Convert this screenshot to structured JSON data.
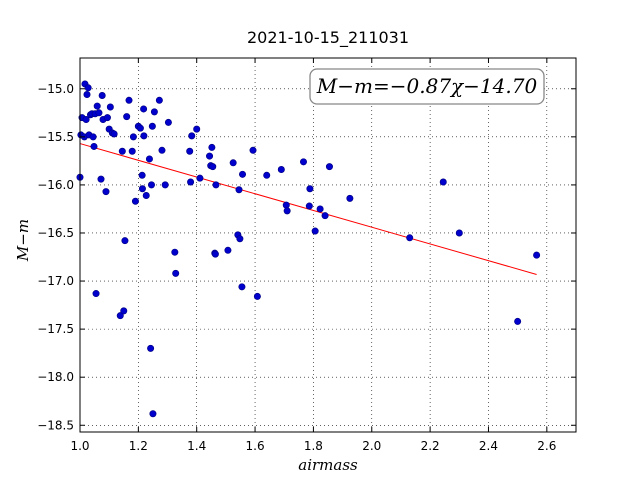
{
  "chart_data": {
    "type": "scatter",
    "title": "2021-10-15_211031",
    "xlabel": "airmass",
    "ylabel": "M−m",
    "xlim": [
      1.0,
      2.7
    ],
    "ylim": [
      -18.57,
      -14.68
    ],
    "xticks": [
      "1.0",
      "1.2",
      "1.4",
      "1.6",
      "1.8",
      "2.0",
      "2.2",
      "2.4",
      "2.6"
    ],
    "yticks": [
      "−15.0",
      "−15.5",
      "−16.0",
      "−16.5",
      "−17.0",
      "−17.5",
      "−18.0",
      "−18.5"
    ],
    "grid": true,
    "annotation": "M−m=−0.87χ−14.70",
    "annotation_position": "top-right",
    "marker_color": "#0000cc",
    "fit_color": "#ff0000",
    "fit": {
      "slope": -0.87,
      "intercept": -14.7,
      "x_range": [
        1.0,
        2.565
      ]
    },
    "points": [
      {
        "x": 1.0,
        "y": -15.92
      },
      {
        "x": 1.003,
        "y": -15.48
      },
      {
        "x": 1.007,
        "y": -15.3
      },
      {
        "x": 1.015,
        "y": -15.5
      },
      {
        "x": 1.017,
        "y": -14.95
      },
      {
        "x": 1.021,
        "y": -15.32
      },
      {
        "x": 1.024,
        "y": -15.06
      },
      {
        "x": 1.028,
        "y": -14.99
      },
      {
        "x": 1.031,
        "y": -15.48
      },
      {
        "x": 1.036,
        "y": -15.27
      },
      {
        "x": 1.041,
        "y": -15.26
      },
      {
        "x": 1.045,
        "y": -15.5
      },
      {
        "x": 1.048,
        "y": -15.6
      },
      {
        "x": 1.052,
        "y": -15.26
      },
      {
        "x": 1.055,
        "y": -17.13
      },
      {
        "x": 1.059,
        "y": -15.18
      },
      {
        "x": 1.065,
        "y": -15.25
      },
      {
        "x": 1.072,
        "y": -15.94
      },
      {
        "x": 1.076,
        "y": -15.07
      },
      {
        "x": 1.079,
        "y": -15.32
      },
      {
        "x": 1.089,
        "y": -16.07
      },
      {
        "x": 1.094,
        "y": -15.3
      },
      {
        "x": 1.1,
        "y": -15.42
      },
      {
        "x": 1.104,
        "y": -15.19
      },
      {
        "x": 1.111,
        "y": -15.46
      },
      {
        "x": 1.117,
        "y": -15.47
      },
      {
        "x": 1.138,
        "y": -17.36
      },
      {
        "x": 1.145,
        "y": -15.65
      },
      {
        "x": 1.15,
        "y": -17.31
      },
      {
        "x": 1.154,
        "y": -16.58
      },
      {
        "x": 1.16,
        "y": -15.29
      },
      {
        "x": 1.168,
        "y": -15.12
      },
      {
        "x": 1.179,
        "y": -15.65
      },
      {
        "x": 1.183,
        "y": -15.5
      },
      {
        "x": 1.19,
        "y": -16.17
      },
      {
        "x": 1.2,
        "y": -15.39
      },
      {
        "x": 1.207,
        "y": -15.41
      },
      {
        "x": 1.213,
        "y": -15.9
      },
      {
        "x": 1.214,
        "y": -16.04
      },
      {
        "x": 1.218,
        "y": -15.21
      },
      {
        "x": 1.219,
        "y": -15.49
      },
      {
        "x": 1.227,
        "y": -16.11
      },
      {
        "x": 1.238,
        "y": -15.73
      },
      {
        "x": 1.242,
        "y": -17.7
      },
      {
        "x": 1.245,
        "y": -16.0
      },
      {
        "x": 1.248,
        "y": -15.39
      },
      {
        "x": 1.25,
        "y": -18.38
      },
      {
        "x": 1.255,
        "y": -15.24
      },
      {
        "x": 1.272,
        "y": -15.12
      },
      {
        "x": 1.281,
        "y": -15.64
      },
      {
        "x": 1.292,
        "y": -16.0
      },
      {
        "x": 1.303,
        "y": -15.35
      },
      {
        "x": 1.325,
        "y": -16.7
      },
      {
        "x": 1.328,
        "y": -16.92
      },
      {
        "x": 1.376,
        "y": -15.65
      },
      {
        "x": 1.379,
        "y": -15.97
      },
      {
        "x": 1.383,
        "y": -15.49
      },
      {
        "x": 1.4,
        "y": -15.42
      },
      {
        "x": 1.411,
        "y": -15.93
      },
      {
        "x": 1.444,
        "y": -15.7
      },
      {
        "x": 1.448,
        "y": -15.8
      },
      {
        "x": 1.452,
        "y": -15.61
      },
      {
        "x": 1.455,
        "y": -15.81
      },
      {
        "x": 1.462,
        "y": -16.71
      },
      {
        "x": 1.464,
        "y": -16.72
      },
      {
        "x": 1.466,
        "y": -16.0
      },
      {
        "x": 1.507,
        "y": -16.68
      },
      {
        "x": 1.525,
        "y": -15.77
      },
      {
        "x": 1.541,
        "y": -16.52
      },
      {
        "x": 1.545,
        "y": -16.05
      },
      {
        "x": 1.548,
        "y": -16.56
      },
      {
        "x": 1.555,
        "y": -17.06
      },
      {
        "x": 1.557,
        "y": -15.89
      },
      {
        "x": 1.593,
        "y": -15.64
      },
      {
        "x": 1.608,
        "y": -17.16
      },
      {
        "x": 1.64,
        "y": -15.9
      },
      {
        "x": 1.69,
        "y": -15.84
      },
      {
        "x": 1.707,
        "y": -16.21
      },
      {
        "x": 1.71,
        "y": -16.27
      },
      {
        "x": 1.766,
        "y": -15.76
      },
      {
        "x": 1.786,
        "y": -16.22
      },
      {
        "x": 1.788,
        "y": -16.04
      },
      {
        "x": 1.806,
        "y": -16.48
      },
      {
        "x": 1.823,
        "y": -16.25
      },
      {
        "x": 1.84,
        "y": -16.32
      },
      {
        "x": 1.855,
        "y": -15.81
      },
      {
        "x": 1.925,
        "y": -16.14
      },
      {
        "x": 2.13,
        "y": -16.55
      },
      {
        "x": 2.245,
        "y": -15.97
      },
      {
        "x": 2.3,
        "y": -16.5
      },
      {
        "x": 2.5,
        "y": -17.42
      },
      {
        "x": 2.565,
        "y": -16.73
      }
    ]
  }
}
